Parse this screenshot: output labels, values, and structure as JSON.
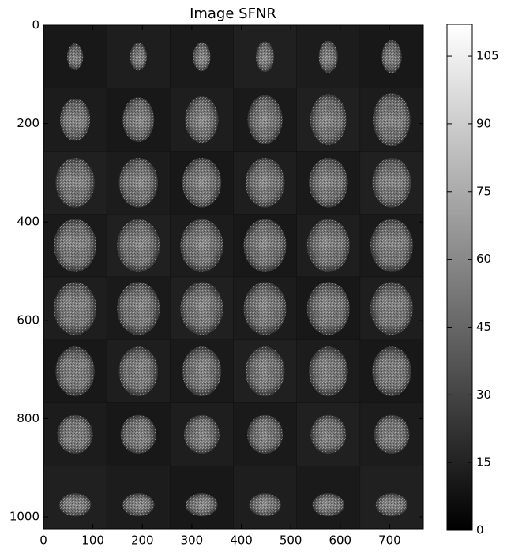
{
  "chart_data": {
    "type": "image",
    "title": "Image SFNR",
    "xlim": [
      0,
      768
    ],
    "xticks": [
      0,
      100,
      200,
      300,
      400,
      500,
      600,
      700
    ],
    "ylim": [
      1024,
      0
    ],
    "yticks": [
      0,
      200,
      400,
      600,
      800,
      1000
    ],
    "colormap": "gray",
    "colorbar": {
      "lim": [
        0,
        112
      ],
      "ticks": [
        0,
        15,
        30,
        45,
        60,
        75,
        90,
        105
      ]
    }
  }
}
